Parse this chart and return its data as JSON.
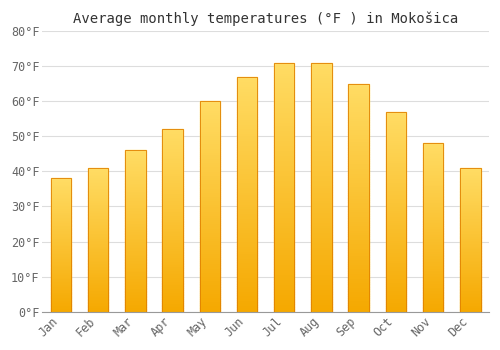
{
  "title": "Average monthly temperatures (°F ) in Mokošica",
  "months": [
    "Jan",
    "Feb",
    "Mar",
    "Apr",
    "May",
    "Jun",
    "Jul",
    "Aug",
    "Sep",
    "Oct",
    "Nov",
    "Dec"
  ],
  "values": [
    38,
    41,
    46,
    52,
    60,
    67,
    71,
    71,
    65,
    57,
    48,
    41
  ],
  "bar_color_bottom": "#F5A800",
  "bar_color_top": "#FFD966",
  "background_color": "#ffffff",
  "ylim": [
    0,
    80
  ],
  "yticks": [
    0,
    10,
    20,
    30,
    40,
    50,
    60,
    70,
    80
  ],
  "grid_color": "#dddddd",
  "title_fontsize": 10,
  "tick_fontsize": 8.5,
  "font_family": "monospace",
  "bar_width": 0.55,
  "n_gradient_steps": 100
}
